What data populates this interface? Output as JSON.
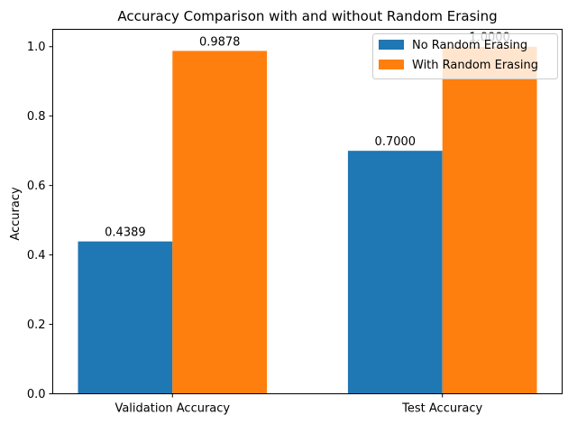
{
  "chart_data": {
    "type": "bar",
    "title": "Accuracy Comparison with and without Random Erasing",
    "xlabel": "",
    "ylabel": "Accuracy",
    "categories": [
      "Validation Accuracy",
      "Test Accuracy"
    ],
    "series": [
      {
        "name": "No Random Erasing",
        "color": "#1f77b4",
        "values": [
          0.4389,
          0.7
        ],
        "labels": [
          "0.4389",
          "0.7000"
        ]
      },
      {
        "name": "With Random Erasing",
        "color": "#ff7f0e",
        "values": [
          0.9878,
          1.0
        ],
        "labels": [
          "0.9878",
          "1.0000"
        ]
      }
    ],
    "ylim": [
      0,
      1.05
    ],
    "yticks": [
      "0.0",
      "0.2",
      "0.4",
      "0.6",
      "0.8",
      "1.0"
    ],
    "grid": false,
    "legend_position": "top-right"
  }
}
